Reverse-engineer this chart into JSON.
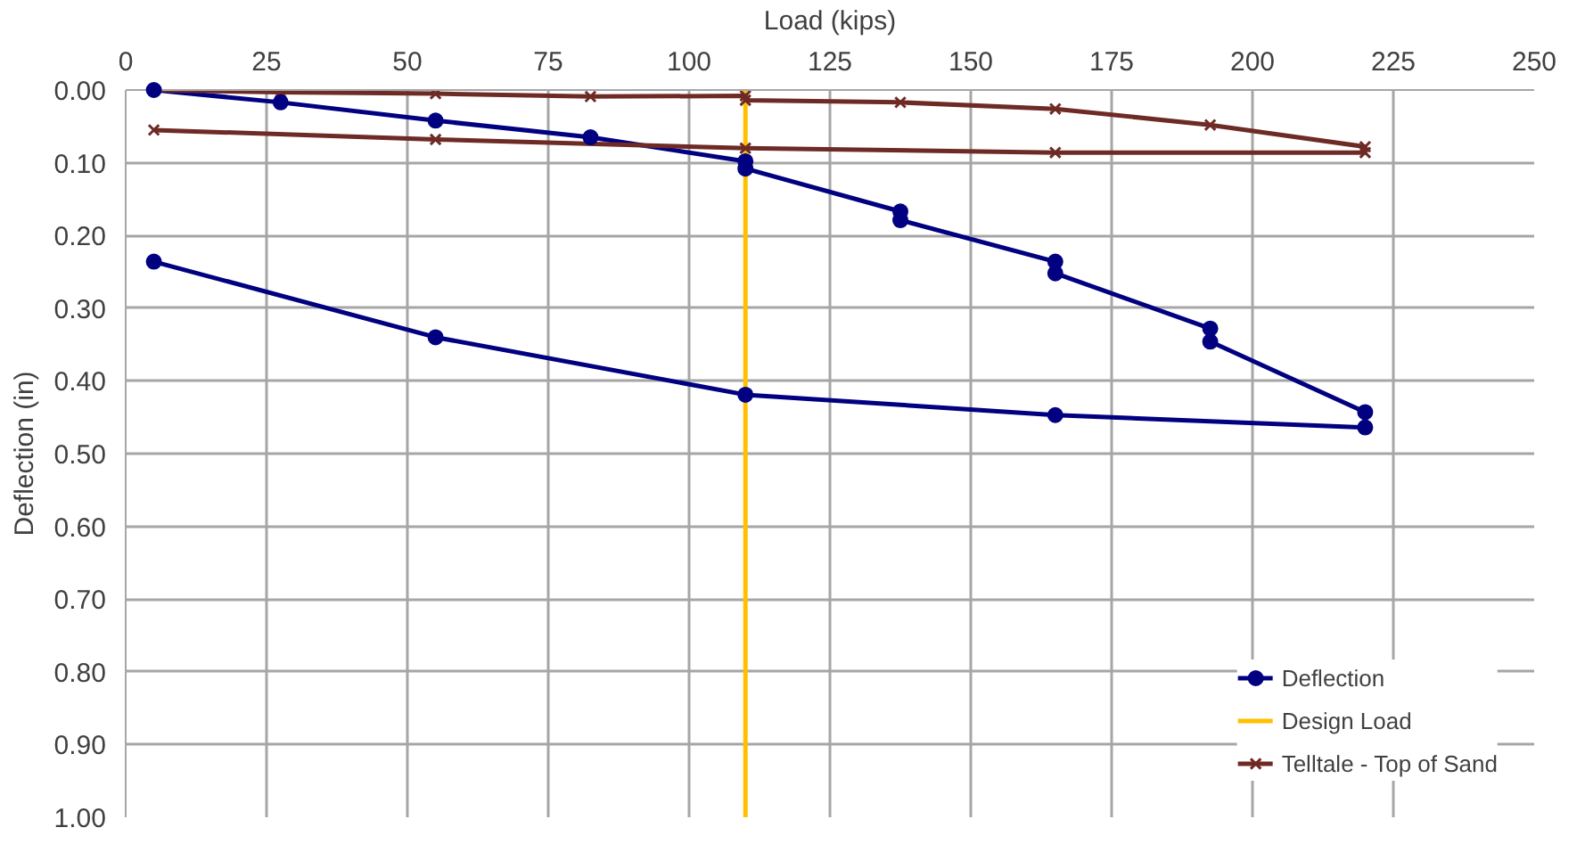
{
  "chart_data": {
    "type": "line",
    "xlabel": "Load (kips)",
    "ylabel": "Deflection (in)",
    "xlim": [
      0,
      250
    ],
    "xticks": [
      0,
      25,
      50,
      75,
      100,
      125,
      150,
      175,
      200,
      225,
      250
    ],
    "ylim": [
      1.0,
      0.0
    ],
    "yticks": [
      {
        "value": 0,
        "label": "0.00"
      },
      {
        "value": 0.1,
        "label": "0.10"
      },
      {
        "value": 0.2,
        "label": "0.20"
      },
      {
        "value": 0.3,
        "label": "0.30"
      },
      {
        "value": 0.4,
        "label": "0.40"
      },
      {
        "value": 0.5,
        "label": "0.50"
      },
      {
        "value": 0.6,
        "label": "0.60"
      },
      {
        "value": 0.7,
        "label": "0.70"
      },
      {
        "value": 0.8,
        "label": "0.80"
      },
      {
        "value": 0.9,
        "label": "0.90"
      },
      {
        "value": 1.0,
        "label": "1.00"
      }
    ],
    "grid": true,
    "legend": "bottom right",
    "line_style": "solid",
    "series": [
      {
        "name": "Deflection",
        "color": "#000080",
        "marker": "circle",
        "x": [
          5,
          27.5,
          55,
          82.5,
          110,
          110,
          137.5,
          137.5,
          165,
          165,
          192.5,
          192.5,
          220,
          220,
          165,
          110,
          55,
          5
        ],
        "values": [
          0,
          0.017,
          0.042,
          0.065,
          0.098,
          0.108,
          0.167,
          0.179,
          0.236,
          0.252,
          0.328,
          0.346,
          0.443,
          0.464,
          0.447,
          0.419,
          0.34,
          0.236
        ]
      },
      {
        "name": "Design Load",
        "color": "#ffc000",
        "marker": "none",
        "x": [
          110,
          110
        ],
        "values": [
          0,
          1.0
        ]
      },
      {
        "name": "Telltale - Top of Sand",
        "color": "#6e2a25",
        "marker": "cross",
        "x": [
          5,
          27.5,
          55,
          82.5,
          110,
          110,
          137.5,
          165,
          192.5,
          220,
          220,
          165,
          110,
          55,
          5
        ],
        "values": [
          0,
          0.003,
          0.005,
          0.009,
          0.008,
          0.014,
          0.017,
          0.026,
          0.048,
          0.078,
          0.086,
          0.086,
          0.08,
          0.068,
          0.055
        ]
      }
    ]
  }
}
